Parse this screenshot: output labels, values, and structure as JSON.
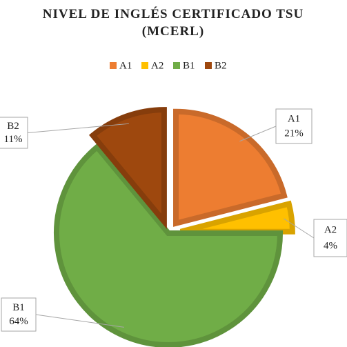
{
  "chart_data": {
    "type": "pie",
    "title": "NIVEL DE INGLÉS CERTIFICADO TSU (MCERL)",
    "categories": [
      "A1",
      "A2",
      "B1",
      "B2"
    ],
    "values": [
      21,
      4,
      64,
      11
    ],
    "value_labels": [
      "21%",
      "4%",
      "64%",
      "11%"
    ],
    "colors": [
      "#ED7D31",
      "#FFC000",
      "#70AD47",
      "#9E480E"
    ],
    "legend": "top"
  }
}
